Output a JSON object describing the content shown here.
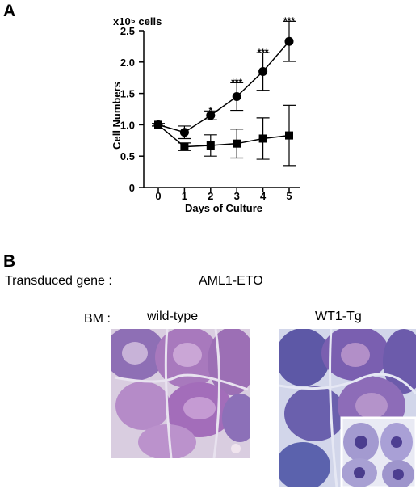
{
  "panel_a": {
    "letter": "A"
  },
  "panel_b": {
    "letter": "B",
    "transduced_label": "Transduced gene :",
    "gene_name": "AML1-ETO",
    "bm_label": "BM :",
    "wildtype_label": "wild-type",
    "wt1tg_label": "WT1-Tg"
  },
  "chart_data": {
    "type": "line",
    "title": "",
    "unit_label": "x10⁵ cells",
    "xlabel": "Days of Culture",
    "ylabel": "Cell Numbers",
    "x": [
      0,
      1,
      2,
      3,
      4,
      5
    ],
    "xlim": [
      0,
      5
    ],
    "ylim": [
      0,
      2.5
    ],
    "yticks": [
      "0",
      "0.5",
      "1.0",
      "1.5",
      "2.0",
      "2.5"
    ],
    "ytick_values": [
      0,
      0.5,
      1.0,
      1.5,
      2.0,
      2.5
    ],
    "grid": false,
    "series": [
      {
        "marker": "circle",
        "values": [
          1.0,
          0.88,
          1.15,
          1.45,
          1.85,
          2.33
        ],
        "errors": [
          0.02,
          0.1,
          0.07,
          0.22,
          0.3,
          0.32
        ]
      },
      {
        "marker": "square",
        "values": [
          1.0,
          0.65,
          0.67,
          0.7,
          0.78,
          0.83
        ],
        "errors": [
          0.02,
          0.06,
          0.17,
          0.23,
          0.33,
          0.48
        ]
      }
    ],
    "annotations": [
      {
        "x": 2,
        "text": "*",
        "y": 1.25
      },
      {
        "x": 3,
        "text": "***",
        "y": 1.7
      },
      {
        "x": 4,
        "text": "***",
        "y": 2.18
      },
      {
        "x": 5,
        "text": "***",
        "y": 2.68
      }
    ]
  }
}
